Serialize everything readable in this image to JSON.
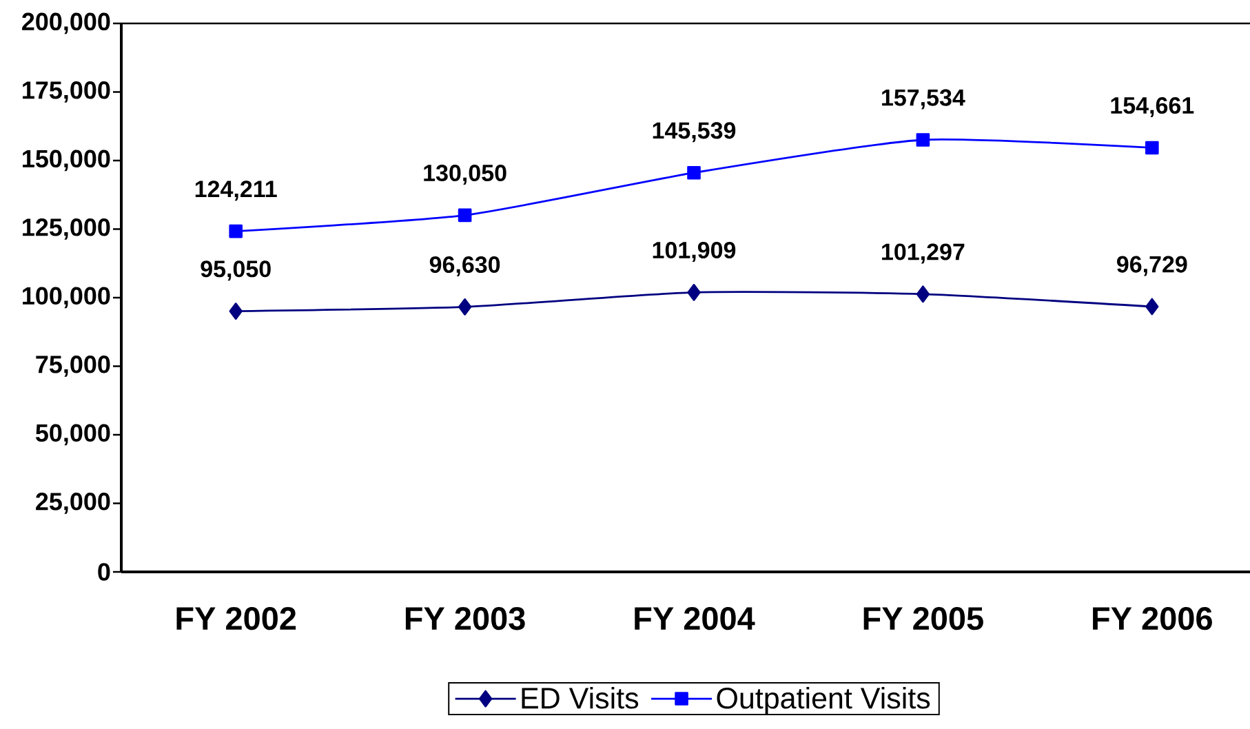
{
  "chart_data": {
    "type": "line",
    "categories": [
      "FY 2002",
      "FY 2003",
      "FY 2004",
      "FY 2005",
      "FY 2006"
    ],
    "series": [
      {
        "name": "ED Visits",
        "color": "#000080",
        "marker": "diamond",
        "values": [
          95050,
          96630,
          101909,
          101297,
          96729
        ],
        "value_labels": [
          "95,050",
          "96,630",
          "101,909",
          "101,297",
          "96,729"
        ]
      },
      {
        "name": "Outpatient Visits",
        "color": "#0000ff",
        "marker": "square",
        "values": [
          124211,
          130050,
          145539,
          157534,
          154661
        ],
        "value_labels": [
          "124,211",
          "130,050",
          "145,539",
          "157,534",
          "154,661"
        ]
      }
    ],
    "ylim": [
      0,
      200000
    ],
    "yticks": [
      0,
      {
        "value": 25000,
        "label": "25,000"
      },
      {
        "value": 50000,
        "label": "50,000"
      },
      {
        "value": 75000,
        "label": "75,000"
      },
      {
        "value": 100000,
        "label": "100,000"
      },
      {
        "value": 125000,
        "label": "125,000"
      },
      {
        "value": 150000,
        "label": "150,000"
      },
      {
        "value": 175000,
        "label": "175,000"
      },
      {
        "value": 200000,
        "label": "200,000"
      }
    ],
    "legend": "bottom",
    "line_style": "solid"
  }
}
